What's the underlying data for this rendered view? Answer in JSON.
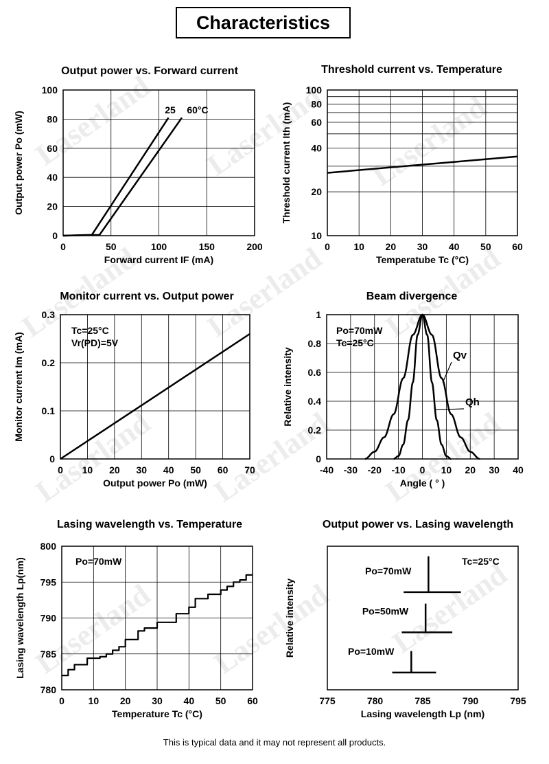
{
  "page": {
    "title": "Characteristics",
    "footer": "This is typical data and it may not represent all products.",
    "watermark": "Laserland",
    "colors": {
      "line": "#000000",
      "grid": "#000000",
      "background": "#ffffff"
    }
  },
  "chart_data": [
    {
      "id": "p1",
      "type": "line",
      "title": "Output power vs. Forward current",
      "xlabel": "Forward current  IF (mA)",
      "ylabel": "Output power  Po (mW)",
      "xlim": [
        0,
        200
      ],
      "ylim": [
        0,
        100
      ],
      "xticks": [
        0,
        50,
        100,
        150,
        200
      ],
      "yticks": [
        0,
        20,
        40,
        60,
        80,
        100
      ],
      "grid": true,
      "annotations": [
        "25",
        "60°C"
      ],
      "series": [
        {
          "name": "25",
          "x": [
            0,
            30,
            110
          ],
          "y": [
            0,
            0.5,
            81
          ]
        },
        {
          "name": "60°C",
          "x": [
            0,
            38,
            124
          ],
          "y": [
            0,
            0.5,
            81
          ]
        }
      ]
    },
    {
      "id": "p2",
      "type": "line",
      "title": "Threshold current vs. Temperature",
      "xlabel": "Temperatube  Tc (°C)",
      "ylabel": "Threshold current  Ith (mA)",
      "xlim": [
        0,
        60
      ],
      "ylim": [
        10,
        100
      ],
      "yscale": "log",
      "xticks": [
        0,
        10,
        20,
        30,
        40,
        50,
        60
      ],
      "yticks": [
        10,
        20,
        40,
        60,
        80,
        100
      ],
      "grid": true,
      "series": [
        {
          "x": [
            0,
            60
          ],
          "y": [
            27,
            35
          ]
        }
      ]
    },
    {
      "id": "p3",
      "type": "line",
      "title": "Monitor current vs. Output power",
      "xlabel": "Output power  Po (mW)",
      "ylabel": "Monitor current  Im (mA)",
      "xlim": [
        0,
        70
      ],
      "ylim": [
        0,
        0.3
      ],
      "xticks": [
        0,
        10,
        20,
        30,
        40,
        50,
        60,
        70
      ],
      "yticks": [
        0,
        0.1,
        0.2,
        0.3
      ],
      "grid": true,
      "annotations": [
        "Tc=25°C",
        "Vr(PD)=5V"
      ],
      "series": [
        {
          "x": [
            0,
            70
          ],
          "y": [
            0,
            0.26
          ]
        }
      ]
    },
    {
      "id": "p4",
      "type": "line",
      "title": "Beam divergence",
      "xlabel": "Angle  ( ° )",
      "ylabel": "Relative intensity",
      "xlim": [
        -40,
        40
      ],
      "ylim": [
        0,
        1.0
      ],
      "xticks": [
        -40,
        -30,
        -20,
        -10,
        0,
        10,
        20,
        30,
        40
      ],
      "yticks": [
        0,
        0.2,
        0.4,
        0.6,
        0.8,
        1.0
      ],
      "grid": true,
      "annotations": [
        "Po=70mW",
        "Tc=25°C",
        "Qv",
        "Qh"
      ],
      "series": [
        {
          "name": "Qv",
          "x": [
            -24,
            -20,
            -16,
            -12,
            -8,
            -4,
            0,
            4,
            8,
            12,
            16,
            20,
            24
          ],
          "y": [
            0,
            0.05,
            0.15,
            0.31,
            0.56,
            0.86,
            1.0,
            0.86,
            0.56,
            0.31,
            0.15,
            0.05,
            0
          ]
        },
        {
          "name": "Qh",
          "x": [
            -12,
            -10,
            -8,
            -6,
            -4,
            -2,
            0,
            2,
            4,
            6,
            8,
            10,
            12
          ],
          "y": [
            0,
            0.02,
            0.1,
            0.27,
            0.53,
            0.86,
            1.0,
            0.86,
            0.53,
            0.27,
            0.1,
            0.02,
            0
          ]
        }
      ]
    },
    {
      "id": "p5",
      "type": "line",
      "title": "Lasing wavelength vs. Temperature",
      "xlabel": "Temperature  Tc (°C)",
      "ylabel": "Lasing wavelength  Lp(nm)",
      "xlim": [
        0,
        60
      ],
      "ylim": [
        780,
        800
      ],
      "xticks": [
        0,
        10,
        20,
        30,
        40,
        50,
        60
      ],
      "yticks": [
        780,
        785,
        790,
        795,
        800
      ],
      "grid": true,
      "annotations": [
        "Po=70mW"
      ],
      "series": [
        {
          "step": true,
          "x": [
            0,
            2,
            4,
            6,
            8,
            10,
            12,
            14,
            16,
            18,
            20,
            22,
            24,
            26,
            28,
            30,
            32,
            34,
            36,
            38,
            40,
            42,
            44,
            46,
            48,
            50,
            52,
            54,
            56,
            58,
            60
          ],
          "y": [
            782,
            782.8,
            783.5,
            783.5,
            784.4,
            784.4,
            784.6,
            785,
            785.5,
            786,
            787,
            787,
            788.2,
            788.6,
            788.6,
            789.4,
            789.4,
            789.4,
            790.6,
            790.6,
            791.5,
            792.7,
            792.7,
            793.3,
            793.3,
            793.9,
            794.4,
            795,
            795.3,
            796,
            796
          ]
        }
      ]
    },
    {
      "id": "p6",
      "type": "bar",
      "title": "Output power vs. Lasing wavelength",
      "xlabel": "Lasing wavelength  Lp (nm)",
      "ylabel": "Relative intensity",
      "xlim": [
        775,
        795
      ],
      "xticks": [
        775,
        780,
        785,
        790,
        795
      ],
      "grid": false,
      "annotations": [
        "Tc=25°C"
      ],
      "spectra": [
        {
          "label": "Po=70mW",
          "wavelength": 785.6,
          "height": 0.93,
          "base": 0.68,
          "span": [
            783,
            789
          ]
        },
        {
          "label": "Po=50mW",
          "wavelength": 785.3,
          "height": 0.6,
          "base": 0.4,
          "span": [
            782.8,
            788.1
          ]
        },
        {
          "label": "Po=10mW",
          "wavelength": 783.8,
          "height": 0.27,
          "base": 0.12,
          "span": [
            781.8,
            786.4
          ]
        }
      ]
    }
  ]
}
